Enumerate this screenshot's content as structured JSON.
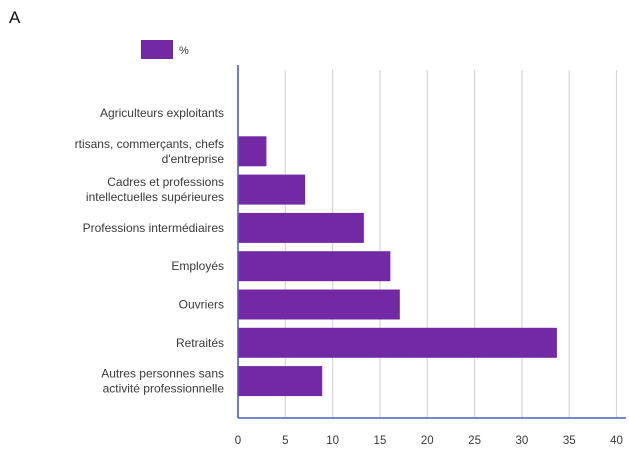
{
  "panel_label": "A",
  "chart_data": {
    "type": "bar",
    "orientation": "horizontal",
    "categories": [
      [
        "Agriculteurs exploitants"
      ],
      [
        "rtisans, commerçants, chefs",
        "d'entreprise"
      ],
      [
        "Cadres et professions",
        "intellectuelles supérieures"
      ],
      [
        "Professions intermédiaires"
      ],
      [
        "Employés"
      ],
      [
        "Ouvriers"
      ],
      [
        "Retraités"
      ],
      [
        "Autres personnes sans",
        "activité professionnelle"
      ]
    ],
    "series": [
      {
        "name": "%",
        "color": "#7329a3",
        "values": [
          0,
          3.0,
          7.1,
          13.3,
          16.1,
          17.1,
          33.7,
          8.9
        ]
      }
    ],
    "xlim": [
      0,
      41
    ],
    "xticks": [
      0,
      5,
      10,
      15,
      20,
      25,
      30,
      35,
      40
    ],
    "grid": true,
    "legend_position": "top-left"
  }
}
